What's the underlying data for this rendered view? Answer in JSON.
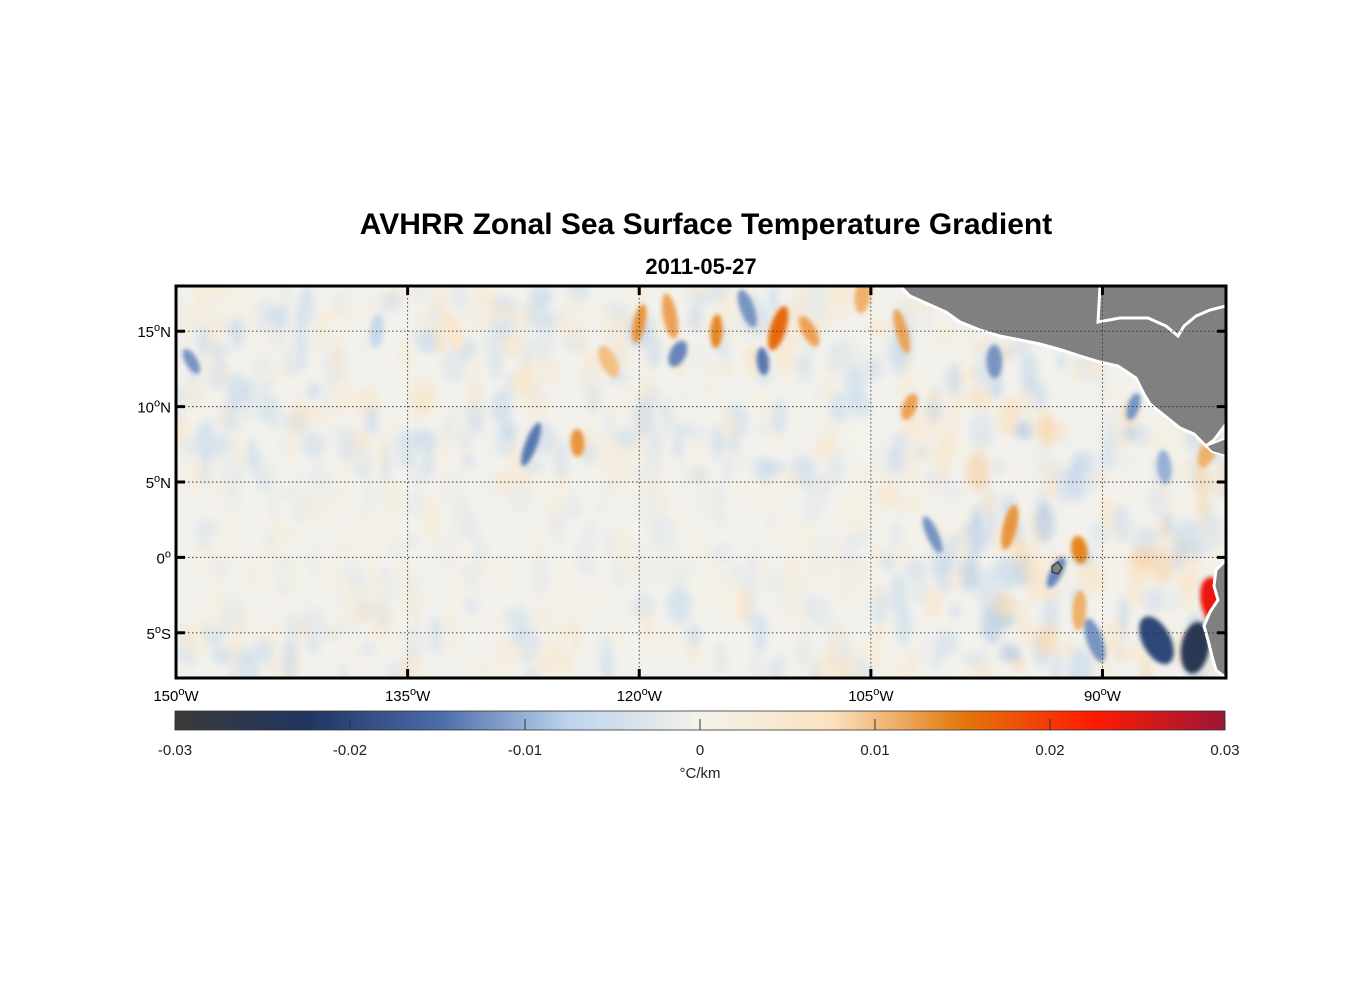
{
  "title": "AVHRR Zonal Sea Surface Temperature Gradient",
  "subtitle": "2011-05-27",
  "map": {
    "lon_range": [
      -150,
      -82
    ],
    "lat_range": [
      -8,
      18
    ],
    "lat_ticks": [
      {
        "value": 15,
        "label": "15",
        "hemi": "N"
      },
      {
        "value": 10,
        "label": "10",
        "hemi": "N"
      },
      {
        "value": 5,
        "label": "5",
        "hemi": "N"
      },
      {
        "value": 0,
        "label": "0",
        "hemi": ""
      },
      {
        "value": -5,
        "label": "5",
        "hemi": "S"
      }
    ],
    "lon_ticks": [
      {
        "value": -150,
        "label": "150",
        "hemi": "W"
      },
      {
        "value": -135,
        "label": "135",
        "hemi": "W"
      },
      {
        "value": -120,
        "label": "120",
        "hemi": "W"
      },
      {
        "value": -105,
        "label": "105",
        "hemi": "W"
      },
      {
        "value": -90,
        "label": "90",
        "hemi": "W"
      }
    ],
    "land_color": "#808080",
    "grid_style": "dotted"
  },
  "colorbar": {
    "range": [
      -0.03,
      0.03
    ],
    "ticks": [
      -0.03,
      -0.02,
      -0.01,
      0,
      0.01,
      0.02,
      0.03
    ],
    "tick_labels": [
      "-0.03",
      "-0.02",
      "-0.01",
      "0",
      "0.01",
      "0.02",
      "0.03"
    ],
    "label": "°C/km",
    "colors": [
      "#3a3a3a",
      "#203560",
      "#4a6aa8",
      "#bcd4ec",
      "#f4f2ea",
      "#fae2c0",
      "#e2780c",
      "#ff1a00",
      "#9c1638"
    ]
  },
  "chart_data": {
    "type": "heatmap",
    "title": "AVHRR Zonal Sea Surface Temperature Gradient",
    "subtitle": "2011-05-27",
    "x_range": [
      -150,
      -82
    ],
    "y_range": [
      -8,
      18
    ],
    "value_range": [
      -0.03,
      0.03
    ],
    "units": "°C/km",
    "features": [
      {
        "lon": -149,
        "lat": 13,
        "value": -0.012
      },
      {
        "lon": -137,
        "lat": 15,
        "value": -0.006
      },
      {
        "lon": -132,
        "lat": 15,
        "value": 0.005
      },
      {
        "lon": -127,
        "lat": 7.5,
        "value": -0.014
      },
      {
        "lon": -124,
        "lat": 7.6,
        "value": 0.013
      },
      {
        "lon": -122,
        "lat": 13,
        "value": 0.01
      },
      {
        "lon": -120,
        "lat": 15.5,
        "value": 0.013
      },
      {
        "lon": -118,
        "lat": 16,
        "value": 0.012
      },
      {
        "lon": -117.5,
        "lat": 13.5,
        "value": -0.013
      },
      {
        "lon": -115,
        "lat": 15,
        "value": 0.014
      },
      {
        "lon": -113,
        "lat": 16.5,
        "value": -0.012
      },
      {
        "lon": -111,
        "lat": 15.2,
        "value": 0.016
      },
      {
        "lon": -112,
        "lat": 13,
        "value": -0.014
      },
      {
        "lon": -109,
        "lat": 15,
        "value": 0.012
      },
      {
        "lon": -105.5,
        "lat": 17.5,
        "value": 0.011
      },
      {
        "lon": -103,
        "lat": 15,
        "value": 0.012
      },
      {
        "lon": -102.5,
        "lat": 10,
        "value": 0.012
      },
      {
        "lon": -97,
        "lat": 13,
        "value": -0.012
      },
      {
        "lon": -101,
        "lat": 1.5,
        "value": -0.012
      },
      {
        "lon": -96,
        "lat": 2,
        "value": 0.013
      },
      {
        "lon": -91.5,
        "lat": 0.5,
        "value": 0.014
      },
      {
        "lon": -93,
        "lat": -1,
        "value": -0.013
      },
      {
        "lon": -91.5,
        "lat": -3.5,
        "value": 0.011
      },
      {
        "lon": -90.5,
        "lat": -5.5,
        "value": -0.012
      },
      {
        "lon": -88,
        "lat": 10,
        "value": -0.012
      },
      {
        "lon": -86,
        "lat": 6,
        "value": -0.01
      },
      {
        "lon": -86.5,
        "lat": -5.5,
        "value": -0.02
      },
      {
        "lon": -84,
        "lat": -6,
        "value": -0.025
      },
      {
        "lon": -82.7,
        "lat": -3,
        "value": 0.024
      },
      {
        "lon": -83.2,
        "lat": 7,
        "value": 0.011
      }
    ]
  }
}
